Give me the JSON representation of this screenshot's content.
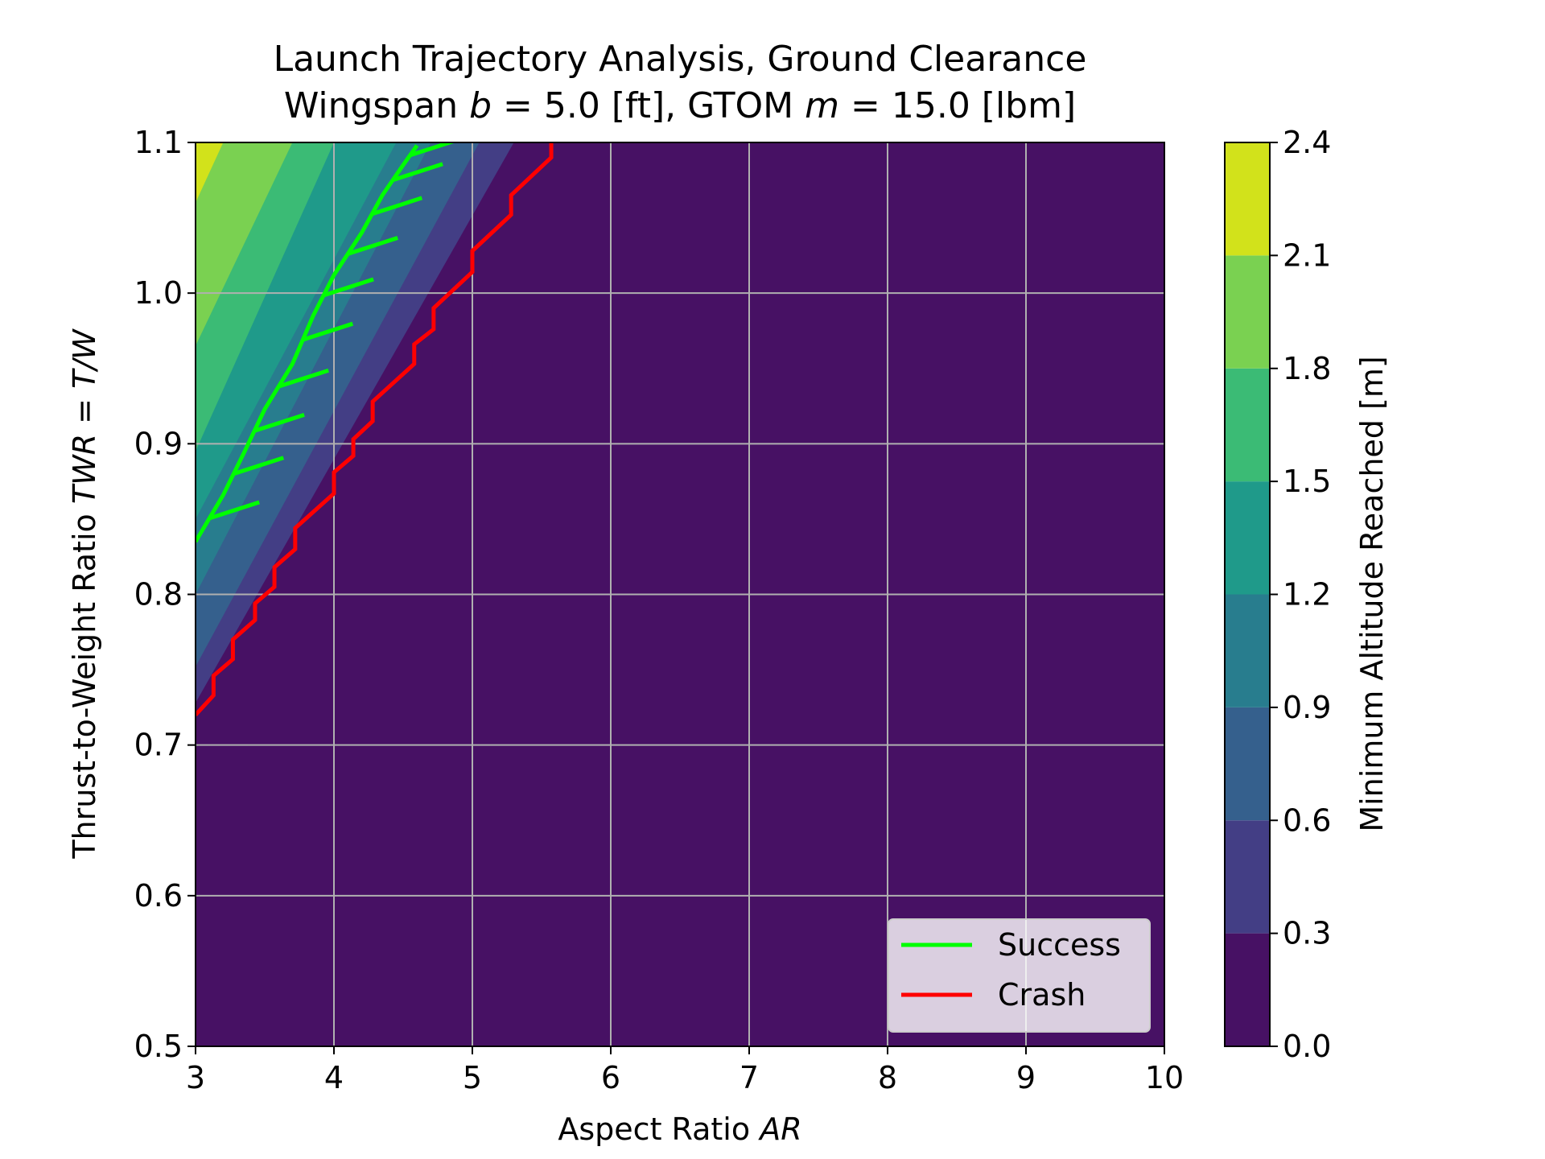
{
  "chart_data": {
    "type": "contour",
    "title_line1": "Launch Trajectory Analysis, Ground Clearance",
    "title_line2": {
      "prefix": "Wingspan ",
      "b_sym": "b",
      "b_val": " = 5.0 [ft], GTOM ",
      "m_sym": "m",
      "m_val": " = 15.0 [lbm]"
    },
    "xlabel": {
      "text": "Aspect Ratio ",
      "sym": "AR"
    },
    "ylabel": {
      "text": "Thrust-to-Weight Ratio ",
      "sym": "TWR",
      "eq": " = ",
      "sym2": "T/W"
    },
    "xlim": [
      3,
      10
    ],
    "ylim": [
      0.5,
      1.1
    ],
    "xticks": [
      "3",
      "4",
      "5",
      "6",
      "7",
      "8",
      "9",
      "10"
    ],
    "yticks": [
      "0.5",
      "0.6",
      "0.7",
      "0.8",
      "0.9",
      "1.0",
      "1.1"
    ],
    "grid": true,
    "colorbar": {
      "label": "Minimum Altitude Reached [m]",
      "ticks": [
        "0.0",
        "0.3",
        "0.6",
        "0.9",
        "1.2",
        "1.5",
        "1.8",
        "2.1",
        "2.4"
      ],
      "levels": [
        0.0,
        0.3,
        0.6,
        0.9,
        1.2,
        1.5,
        1.8,
        2.1,
        2.4
      ],
      "colors": [
        "#471164",
        "#433e85",
        "#35608d",
        "#287d8e",
        "#1f9a8a",
        "#3bbb75",
        "#7ad151",
        "#d2e21b"
      ]
    },
    "contour_bands": [
      {
        "level": 0.3,
        "color": "#433e85",
        "boundary": [
          [
            3,
            0.728
          ],
          [
            5.3,
            1.1
          ]
        ]
      },
      {
        "level": 0.6,
        "color": "#35608d",
        "boundary": [
          [
            3,
            0.752
          ],
          [
            5.05,
            1.1
          ]
        ]
      },
      {
        "level": 0.9,
        "color": "#287d8e",
        "boundary": [
          [
            3,
            0.8
          ],
          [
            4.7,
            1.1
          ]
        ]
      },
      {
        "level": 1.2,
        "color": "#1f9a8a",
        "boundary": [
          [
            3,
            0.85
          ],
          [
            4.45,
            1.1
          ]
        ]
      },
      {
        "level": 1.5,
        "color": "#3bbb75",
        "boundary": [
          [
            3,
            0.895
          ],
          [
            4.0,
            1.1
          ]
        ]
      },
      {
        "level": 1.8,
        "color": "#7ad151",
        "boundary": [
          [
            3,
            0.965
          ],
          [
            3.7,
            1.1
          ]
        ]
      },
      {
        "level": 2.1,
        "color": "#d2e21b",
        "boundary": [
          [
            3,
            1.06
          ],
          [
            3.2,
            1.1
          ]
        ]
      }
    ],
    "series": [
      {
        "name": "Success",
        "color": "#00ff00",
        "hatched": true,
        "points": [
          [
            3.0,
            0.835
          ],
          [
            3.2,
            0.866
          ],
          [
            3.35,
            0.894
          ],
          [
            3.5,
            0.923
          ],
          [
            3.7,
            0.953
          ],
          [
            3.85,
            0.985
          ],
          [
            4.0,
            1.012
          ],
          [
            4.2,
            1.04
          ],
          [
            4.35,
            1.065
          ],
          [
            4.5,
            1.085
          ],
          [
            4.6,
            1.098
          ]
        ]
      },
      {
        "name": "Crash",
        "color": "#ff0000",
        "points": [
          [
            3.0,
            0.72
          ],
          [
            3.13,
            0.733
          ],
          [
            3.13,
            0.746
          ],
          [
            3.27,
            0.757
          ],
          [
            3.27,
            0.77
          ],
          [
            3.43,
            0.783
          ],
          [
            3.43,
            0.794
          ],
          [
            3.57,
            0.805
          ],
          [
            3.57,
            0.818
          ],
          [
            3.72,
            0.83
          ],
          [
            3.72,
            0.844
          ],
          [
            4.0,
            0.867
          ],
          [
            4.0,
            0.881
          ],
          [
            4.14,
            0.892
          ],
          [
            4.14,
            0.903
          ],
          [
            4.28,
            0.915
          ],
          [
            4.28,
            0.928
          ],
          [
            4.58,
            0.953
          ],
          [
            4.58,
            0.966
          ],
          [
            4.72,
            0.976
          ],
          [
            4.72,
            0.99
          ],
          [
            5.0,
            1.014
          ],
          [
            5.0,
            1.028
          ],
          [
            5.28,
            1.052
          ],
          [
            5.28,
            1.065
          ],
          [
            5.57,
            1.09
          ],
          [
            5.57,
            1.1
          ]
        ]
      }
    ],
    "legend_position": "lower right"
  }
}
